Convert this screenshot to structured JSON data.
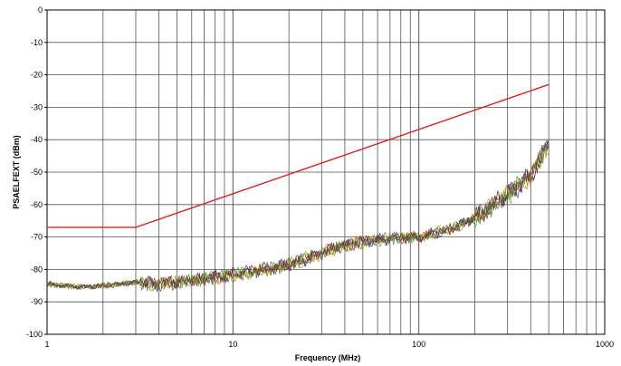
{
  "chart_data": {
    "type": "line",
    "title": "",
    "xlabel": "Frequency (MHz)",
    "ylabel": "PSAELFEXT (dBm)",
    "x_scale": "log",
    "xlim": [
      1,
      1000
    ],
    "ylim": [
      -100,
      0
    ],
    "x_ticks": [
      1,
      10,
      100,
      1000
    ],
    "x_tick_labels": [
      "1",
      "10",
      "100",
      "1000"
    ],
    "y_ticks": [
      0,
      -10,
      -20,
      -30,
      -40,
      -50,
      -60,
      -70,
      -80,
      -90,
      -100
    ],
    "y_tick_labels": [
      "0",
      "-10",
      "-20",
      "-30",
      "-40",
      "-50",
      "-60",
      "-70",
      "-80",
      "-90",
      "-100"
    ],
    "grid": true,
    "legend": "none",
    "colors": {
      "limit": "#dd2222",
      "measurements": [
        "#1a1a8c",
        "#e07b00",
        "#8c8c00",
        "#2a8a2a",
        "#8b1a1a",
        "#4a4a4a"
      ]
    },
    "series": [
      {
        "role": "limit",
        "x": [
          1,
          3,
          500
        ],
        "y": [
          -67,
          -67,
          -23
        ]
      },
      {
        "role": "measurement",
        "x": [
          1,
          1.5,
          2,
          3,
          4,
          5,
          7,
          10,
          15,
          20,
          30,
          40,
          50,
          70,
          100,
          150,
          200,
          300,
          400,
          500
        ],
        "y": [
          -84.5,
          -85.5,
          -85,
          -84,
          -84.5,
          -84,
          -83,
          -81.5,
          -80,
          -78.5,
          -75,
          -72.5,
          -71.5,
          -70.5,
          -70,
          -67.5,
          -64,
          -57,
          -51,
          -41
        ]
      }
    ]
  }
}
